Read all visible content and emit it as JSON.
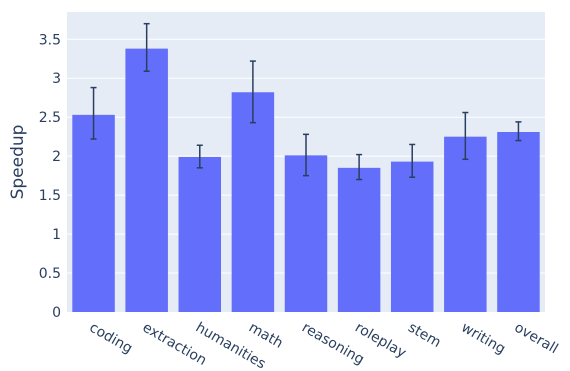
{
  "chart_data": {
    "type": "bar",
    "ylabel": "Speedup",
    "categories": [
      "coding",
      "extraction",
      "humanities",
      "math",
      "reasoning",
      "roleplay",
      "stem",
      "writing",
      "overall"
    ],
    "values": [
      2.53,
      3.38,
      1.99,
      2.82,
      2.01,
      1.85,
      1.93,
      2.25,
      2.31
    ],
    "error_low": [
      2.22,
      3.09,
      1.85,
      2.43,
      1.75,
      1.7,
      1.73,
      1.96,
      2.2
    ],
    "error_high": [
      2.88,
      3.7,
      2.14,
      3.22,
      2.28,
      2.02,
      2.15,
      2.56,
      2.44
    ],
    "ylim": [
      0,
      3.85
    ],
    "yticks": [
      0,
      0.5,
      1,
      1.5,
      2,
      2.5,
      3,
      3.5
    ],
    "ytick_labels": [
      "0",
      "0.5",
      "1",
      "1.5",
      "2",
      "2.5",
      "3",
      "3.5"
    ],
    "grid": true,
    "colors": {
      "bar": "#636efa",
      "plot_bg": "#e5ecf6",
      "grid": "#ffffff",
      "text": "#2a3f5f",
      "error": "#2a3f5f"
    }
  }
}
